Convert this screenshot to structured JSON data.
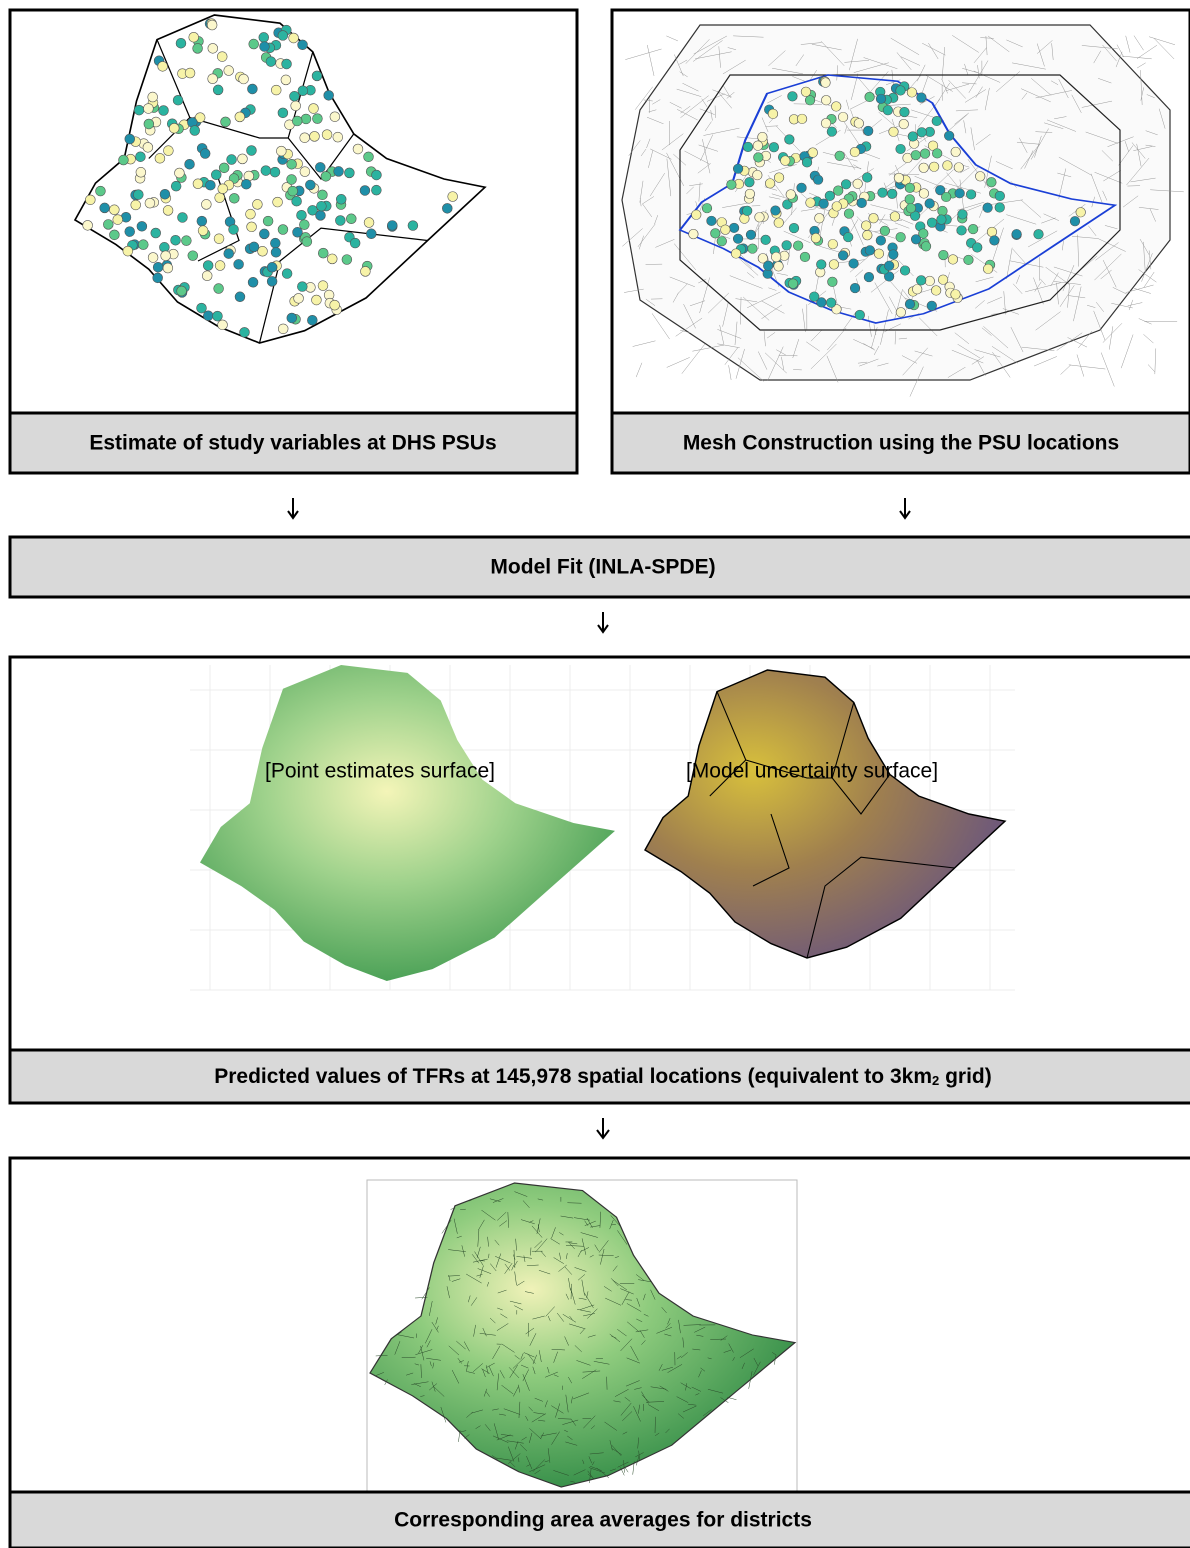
{
  "panels": [
    {
      "label": "Estimate of study variables at DHS PSUs"
    },
    {
      "label": "Mesh Construction using the PSU locations"
    },
    {
      "label": "Model Fit (INLA-SPDE)"
    },
    {
      "captions": [
        "[Point estimates surface]",
        "[Model uncertainty surface]"
      ],
      "label_parts": [
        "Predicted values of TFRs at 145,978 spatial locations (equivalent to 3km",
        "2",
        " grid)"
      ]
    },
    {
      "label": "Corresponding area averages for districts"
    }
  ]
}
